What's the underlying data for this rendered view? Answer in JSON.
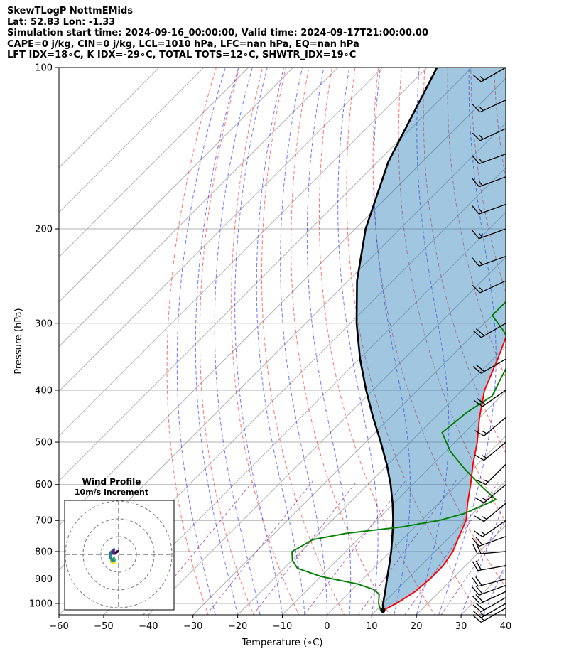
{
  "header": {
    "line1": "SkewTLogP NottmEMids",
    "line2": "Lat: 52.83   Lon: -1.33",
    "line3": "Simulation start time: 2024-09-16_00:00:00, Valid time: 2024-09-17T21:00:00.00",
    "line4": "CAPE=0 j/kg, CIN=0 j/kg, LCL=1010 hPa, LFC=nan hPa, EQ=nan hPa",
    "line5": "LFT IDX=18∘C, K IDX=-29∘C, TOTAL TOTS=12∘C, SHWTR_IDX=19∘C"
  },
  "chart_data": {
    "type": "skew-t log-p",
    "xlabel": "Temperature (∘C)",
    "ylabel": "Pressure (hPa)",
    "xlim": [
      -60,
      40
    ],
    "ylim": [
      1050,
      100
    ],
    "x_ticks": [
      "−60",
      "−50",
      "−40",
      "−30",
      "−20",
      "−10",
      "0",
      "10",
      "20",
      "30",
      "40"
    ],
    "x_tick_values": [
      -60,
      -50,
      -40,
      -30,
      -20,
      -10,
      0,
      10,
      20,
      30,
      40
    ],
    "y_ticks": [
      "100",
      "200",
      "300",
      "400",
      "500",
      "600",
      "700",
      "800",
      "900",
      "1000"
    ],
    "y_tick_values": [
      100,
      200,
      300,
      400,
      500,
      600,
      700,
      800,
      900,
      1000
    ],
    "log_scale_y": true,
    "grid": true,
    "colors": {
      "temperature": "#ff0000",
      "dewpoint": "#008000",
      "parcel": "#000000",
      "cin_cape_fill": "#1f77b4",
      "dry_adiabats": "#ff0000",
      "moist_adiabats": "#0000ff",
      "mixing_ratio": "#800080"
    },
    "temperature": {
      "pressure": [
        1030,
        1000,
        950,
        900,
        850,
        800,
        750,
        700,
        650,
        600,
        550,
        500,
        450,
        400,
        350,
        300,
        275,
        250,
        225,
        200,
        180,
        165,
        150,
        140,
        130,
        120,
        110,
        100
      ],
      "value": [
        11.5,
        13,
        14.5,
        15,
        15,
        14,
        12,
        10,
        6.5,
        3,
        -1,
        -5,
        -10,
        -15,
        -19,
        -24,
        -25,
        -30,
        -33,
        -37,
        -41,
        -42,
        -43,
        -42,
        -38,
        -38,
        -34,
        -33
      ]
    },
    "dewpoint": {
      "pressure": [
        1030,
        1000,
        960,
        940,
        920,
        890,
        860,
        830,
        800,
        780,
        760,
        740,
        720,
        700,
        680,
        660,
        640,
        600,
        560,
        520,
        480,
        440,
        410,
        380,
        350,
        330,
        310,
        290,
        270,
        250,
        230,
        210,
        200,
        190,
        175,
        165,
        155,
        145,
        135,
        125,
        115,
        105,
        100
      ],
      "value": [
        11,
        9,
        7,
        4.5,
        0,
        -10,
        -17,
        -20,
        -22,
        -21,
        -20,
        -14,
        -3,
        4,
        8,
        10,
        12,
        5,
        -2,
        -9,
        -15,
        -14,
        -12,
        -14,
        -16,
        -19,
        -24,
        -30,
        -30,
        -33,
        -34,
        -38,
        -40,
        -43,
        -47,
        -48,
        -48,
        -50,
        -52,
        -52,
        -55,
        -55,
        -55
      ]
    },
    "parcel": {
      "pressure": [
        1030,
        1000,
        950,
        900,
        850,
        800,
        750,
        700,
        650,
        600,
        550,
        500,
        450,
        400,
        350,
        300,
        250,
        200,
        150,
        100
      ],
      "value": [
        11.5,
        10,
        7.8,
        5.4,
        2.9,
        0.2,
        -2.9,
        -6.3,
        -10.3,
        -14.9,
        -20.3,
        -26.6,
        -33.8,
        -41.5,
        -49.8,
        -58.6,
        -68,
        -77.7,
        -87.6,
        -97.8
      ]
    },
    "wind_barbs": [
      {
        "pressure": 1020,
        "speed_kt": 15,
        "direction_deg": 240
      },
      {
        "pressure": 1000,
        "speed_kt": 15,
        "direction_deg": 240
      },
      {
        "pressure": 975,
        "speed_kt": 20,
        "direction_deg": 240
      },
      {
        "pressure": 950,
        "speed_kt": 20,
        "direction_deg": 245
      },
      {
        "pressure": 925,
        "speed_kt": 20,
        "direction_deg": 250
      },
      {
        "pressure": 900,
        "speed_kt": 20,
        "direction_deg": 255
      },
      {
        "pressure": 850,
        "speed_kt": 20,
        "direction_deg": 260
      },
      {
        "pressure": 800,
        "speed_kt": 20,
        "direction_deg": 265
      },
      {
        "pressure": 750,
        "speed_kt": 20,
        "direction_deg": 250
      },
      {
        "pressure": 700,
        "speed_kt": 15,
        "direction_deg": 235
      },
      {
        "pressure": 650,
        "speed_kt": 15,
        "direction_deg": 230
      },
      {
        "pressure": 600,
        "speed_kt": 15,
        "direction_deg": 230
      },
      {
        "pressure": 550,
        "speed_kt": 15,
        "direction_deg": 225
      },
      {
        "pressure": 500,
        "speed_kt": 15,
        "direction_deg": 230
      },
      {
        "pressure": 450,
        "speed_kt": 15,
        "direction_deg": 230
      },
      {
        "pressure": 400,
        "speed_kt": 20,
        "direction_deg": 235
      },
      {
        "pressure": 350,
        "speed_kt": 20,
        "direction_deg": 240
      },
      {
        "pressure": 300,
        "speed_kt": 20,
        "direction_deg": 240
      },
      {
        "pressure": 250,
        "speed_kt": 15,
        "direction_deg": 245
      },
      {
        "pressure": 225,
        "speed_kt": 15,
        "direction_deg": 250
      },
      {
        "pressure": 200,
        "speed_kt": 15,
        "direction_deg": 250
      },
      {
        "pressure": 180,
        "speed_kt": 15,
        "direction_deg": 250
      },
      {
        "pressure": 160,
        "speed_kt": 15,
        "direction_deg": 250
      },
      {
        "pressure": 145,
        "speed_kt": 15,
        "direction_deg": 250
      },
      {
        "pressure": 130,
        "speed_kt": 15,
        "direction_deg": 245
      },
      {
        "pressure": 115,
        "speed_kt": 15,
        "direction_deg": 245
      },
      {
        "pressure": 100,
        "speed_kt": 15,
        "direction_deg": 240
      }
    ],
    "hodograph": {
      "title_line1": "Wind Profile",
      "title_line2": "10m/s increment",
      "ring_step_ms": 10,
      "u": [
        -2.2,
        -3.3,
        -4.0,
        -4.1,
        -3.5,
        -2.6,
        -2.2,
        -2.6,
        -3.5,
        -4.8,
        -4.6,
        -3.3,
        -2.6,
        -2.9,
        -3.0,
        -1.5,
        -0.5
      ],
      "v": [
        -4.5,
        -4.8,
        -4.2,
        -3.4,
        -2.6,
        -2.2,
        -3.1,
        -3.8,
        -3.5,
        -1.5,
        1.0,
        2.2,
        2.8,
        1.8,
        1.0,
        1.1,
        1.7
      ],
      "colormap": [
        "#fde725",
        "#b5de2b",
        "#6ece58",
        "#35b779",
        "#1f9e89",
        "#26828e",
        "#31688e",
        "#3e4989",
        "#482878",
        "#440154"
      ]
    }
  }
}
